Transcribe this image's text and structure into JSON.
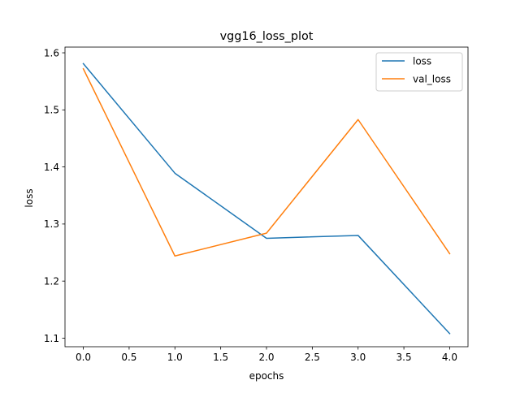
{
  "chart_data": {
    "type": "line",
    "title": "vgg16_loss_plot",
    "xlabel": "epochs",
    "ylabel": "loss",
    "x": [
      0,
      1,
      2,
      3,
      4
    ],
    "xlim": [
      -0.2,
      4.2
    ],
    "ylim": [
      1.085,
      1.61
    ],
    "xticks": [
      0.0,
      0.5,
      1.0,
      1.5,
      2.0,
      2.5,
      3.0,
      3.5,
      4.0
    ],
    "xtick_labels": [
      "0.0",
      "0.5",
      "1.0",
      "1.5",
      "2.0",
      "2.5",
      "3.0",
      "3.5",
      "4.0"
    ],
    "yticks": [
      1.1,
      1.2,
      1.3,
      1.4,
      1.5,
      1.6
    ],
    "ytick_labels": [
      "1.1",
      "1.2",
      "1.3",
      "1.4",
      "1.5",
      "1.6"
    ],
    "grid": false,
    "legend_position": "upper-right",
    "series": [
      {
        "name": "loss",
        "color": "#1f77b4",
        "values": [
          1.581,
          1.389,
          1.275,
          1.28,
          1.108
        ]
      },
      {
        "name": "val_loss",
        "color": "#ff7f0e",
        "values": [
          1.572,
          1.244,
          1.284,
          1.483,
          1.248
        ]
      }
    ]
  }
}
